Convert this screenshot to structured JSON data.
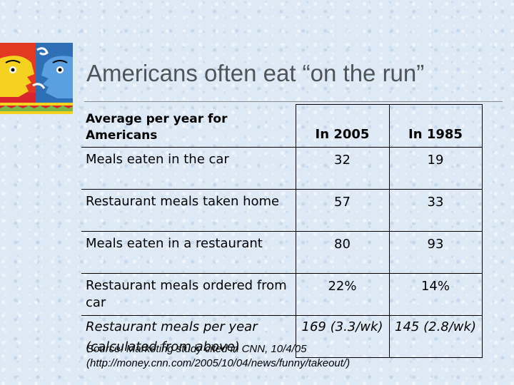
{
  "title": "Americans often eat “on the run”",
  "table": {
    "header": {
      "label": "Average per year for Americans",
      "col1": "In 2005",
      "col2": "In 1985"
    },
    "rows": [
      {
        "label": "Meals eaten in the car",
        "v2005": "32",
        "v1985": "19"
      },
      {
        "label": "Restaurant meals taken home",
        "v2005": "57",
        "v1985": "33"
      },
      {
        "label": "Meals eaten in a restaurant",
        "v2005": "80",
        "v1985": "93"
      },
      {
        "label": "Restaurant meals ordered from car",
        "v2005": "22%",
        "v1985": "14%"
      },
      {
        "label": "Restaurant meals per year (calculated from above)",
        "v2005": "169 (3.3/wk)",
        "v1985": "145 (2.8/wk)"
      }
    ]
  },
  "source": {
    "line1": "Source: Marketing study cited in CNN, 10/4/05",
    "line2": "(http://money.cnn.com/2005/10/04/news/funny/takeout/)"
  },
  "colors": {
    "title": "#4f5458",
    "background": "#dde9f5",
    "logo_red": "#d8242c",
    "logo_blue": "#2f6fb5",
    "logo_yellow": "#f4d21f"
  }
}
